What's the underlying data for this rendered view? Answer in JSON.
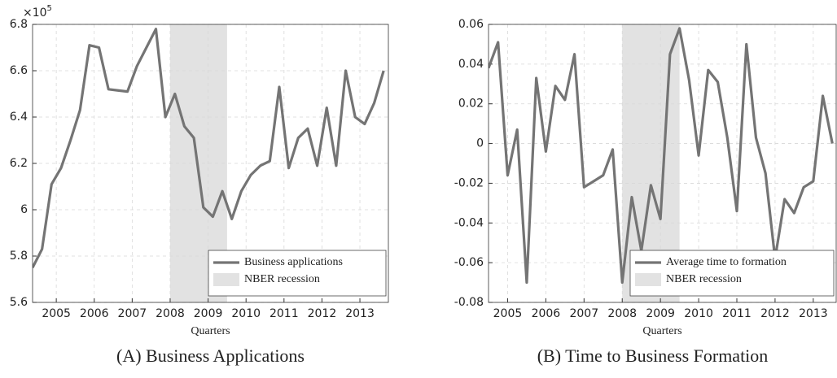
{
  "chart_data": [
    {
      "type": "line",
      "caption": "(A) Business Applications",
      "xlabel": "Quarters",
      "y_multiplier": "×10",
      "y_multiplier_exponent": "5",
      "x": [
        2004.375,
        2004.625,
        2004.875,
        2005.125,
        2005.375,
        2005.625,
        2005.875,
        2006.125,
        2006.375,
        2006.625,
        2006.875,
        2007.125,
        2007.375,
        2007.625,
        2007.875,
        2008.125,
        2008.375,
        2008.625,
        2008.875,
        2009.125,
        2009.375,
        2009.625,
        2009.875,
        2010.125,
        2010.375,
        2010.625,
        2010.875,
        2011.125,
        2011.375,
        2011.625,
        2011.875,
        2012.125,
        2012.375,
        2012.625,
        2012.875,
        2013.125,
        2013.375,
        2013.625
      ],
      "series": [
        {
          "name": "Business applications",
          "color": "#747474",
          "values": [
            5.75,
            5.83,
            6.11,
            6.18,
            6.3,
            6.43,
            6.71,
            6.7,
            6.52,
            6.515,
            6.51,
            6.62,
            6.7,
            6.78,
            6.4,
            6.5,
            6.36,
            6.31,
            6.01,
            5.97,
            6.08,
            5.96,
            6.08,
            6.15,
            6.19,
            6.21,
            6.53,
            6.18,
            6.31,
            6.35,
            6.19,
            6.44,
            6.19,
            6.6,
            6.4,
            6.37,
            6.46,
            6.6
          ]
        }
      ],
      "shaded": {
        "name": "NBER recession",
        "start": 2008,
        "end": 2009.5,
        "color": "#e2e2e2"
      },
      "xlim": [
        2004.375,
        2013.75
      ],
      "xticks": [
        2005,
        2006,
        2007,
        2008,
        2009,
        2010,
        2011,
        2012,
        2013
      ],
      "ylim": [
        5.6,
        6.8
      ],
      "yticks": [
        5.6,
        5.8,
        6,
        6.2,
        6.4,
        6.6,
        6.8
      ],
      "grid": true,
      "legend": "lower right"
    },
    {
      "type": "line",
      "caption": "(B) Time to Business Formation",
      "xlabel": "Quarters",
      "x": [
        2004.5,
        2004.75,
        2005,
        2005.25,
        2005.5,
        2005.75,
        2006,
        2006.25,
        2006.5,
        2006.75,
        2007,
        2007.25,
        2007.5,
        2007.75,
        2008,
        2008.25,
        2008.5,
        2008.75,
        2009,
        2009.25,
        2009.5,
        2009.75,
        2010,
        2010.25,
        2010.5,
        2010.75,
        2011,
        2011.25,
        2011.5,
        2011.75,
        2012,
        2012.25,
        2012.5,
        2012.75,
        2013,
        2013.25,
        2013.5
      ],
      "series": [
        {
          "name": "Average time to formation",
          "color": "#747474",
          "values": [
            0.038,
            0.051,
            -0.016,
            0.007,
            -0.07,
            0.033,
            -0.004,
            0.029,
            0.022,
            0.045,
            -0.022,
            -0.019,
            -0.016,
            -0.003,
            -0.07,
            -0.027,
            -0.054,
            -0.021,
            -0.038,
            0.045,
            0.058,
            0.032,
            -0.006,
            0.037,
            0.031,
            0.003,
            -0.034,
            0.05,
            0.003,
            -0.015,
            -0.058,
            -0.028,
            -0.035,
            -0.022,
            -0.019,
            0.024,
            0
          ]
        }
      ],
      "shaded": {
        "name": "NBER recession",
        "start": 2008,
        "end": 2009.5,
        "color": "#e2e2e2"
      },
      "xlim": [
        2004.5,
        2013.6
      ],
      "xticks": [
        2005,
        2006,
        2007,
        2008,
        2009,
        2010,
        2011,
        2012,
        2013
      ],
      "ylim": [
        -0.08,
        0.06
      ],
      "yticks": [
        -0.08,
        -0.06,
        -0.04,
        -0.02,
        0,
        0.02,
        0.04,
        0.06
      ],
      "grid": true,
      "legend": "lower right"
    }
  ]
}
